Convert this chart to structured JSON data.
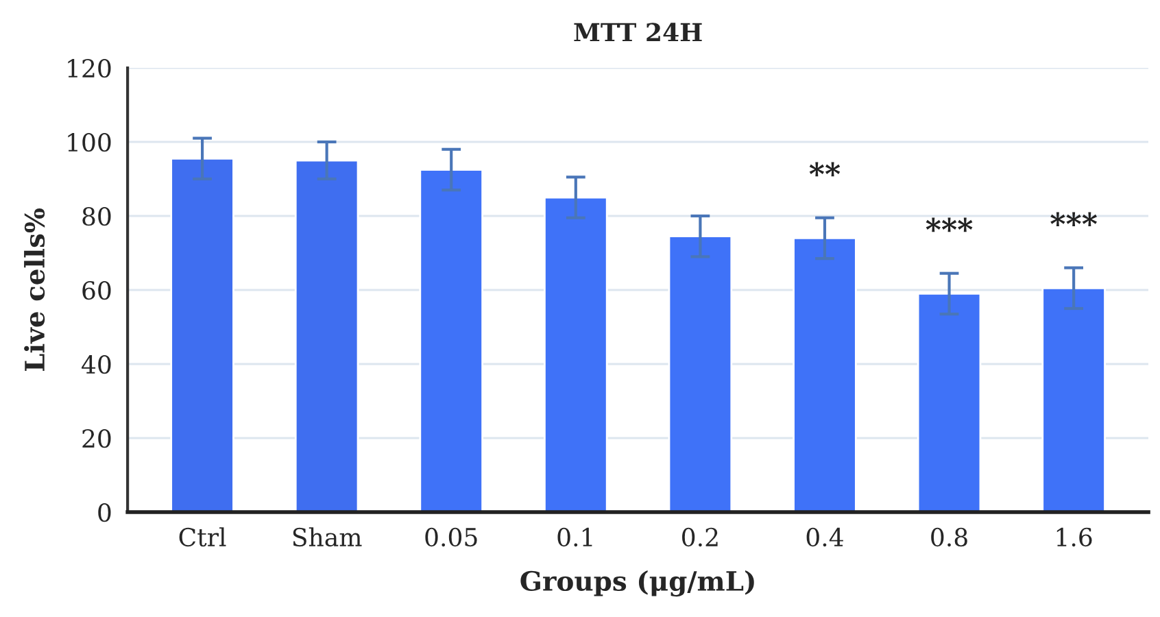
{
  "chart_data": {
    "type": "bar",
    "title": "MTT 24H",
    "xlabel": "Groups (μg/mL)",
    "ylabel": "Live cells%",
    "categories": [
      "Ctrl",
      "Sham",
      "0.05",
      "0.1",
      "0.2",
      "0.4",
      "0.8",
      "1.6"
    ],
    "values": [
      95.5,
      95,
      92.5,
      85,
      74.5,
      74,
      59,
      60.5
    ],
    "errors": [
      5.5,
      5,
      5.5,
      5.5,
      5.5,
      5.5,
      5.5,
      5.5
    ],
    "colors": [
      "#3f6ef0",
      "#3f6ef0",
      "#3f72f8",
      "#3f72f8",
      "#3f72f8",
      "#3f72f8",
      "#3f72f8",
      "#3f72f8"
    ],
    "ylim": [
      0,
      120
    ],
    "yticks": [
      0,
      20,
      40,
      60,
      80,
      100,
      120
    ],
    "grid": "y",
    "value_labels": [
      null,
      null,
      null,
      null,
      null,
      "**",
      "***",
      "***"
    ]
  }
}
